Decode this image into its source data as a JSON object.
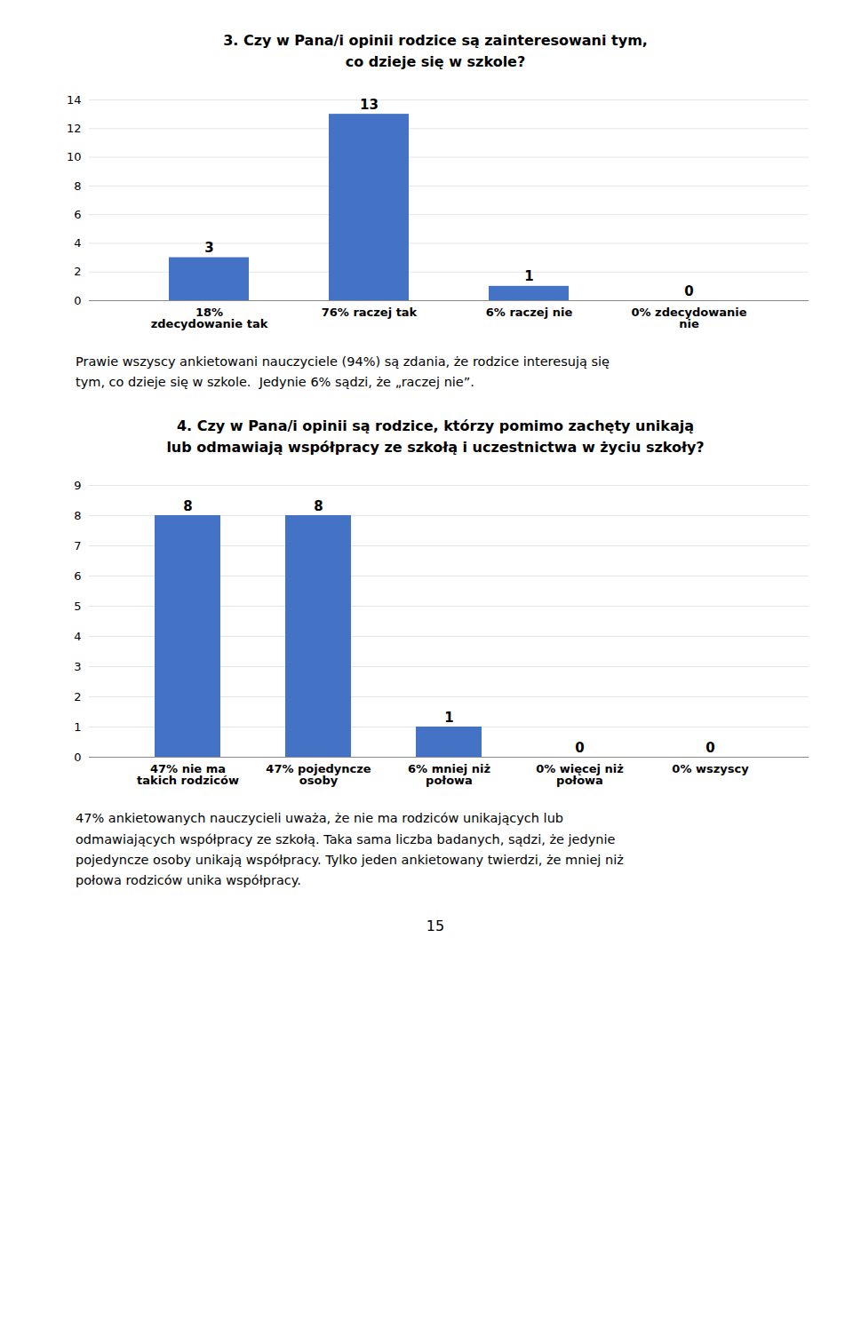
{
  "chart_data": [
    {
      "type": "bar",
      "title": "3.  Czy w Pana/i opinii rodzice są zainteresowani tym,\nco dzieje się w szkole?",
      "categories": [
        "18%\nzdecydowanie tak",
        "76% raczej tak",
        "6% raczej nie",
        "0% zdecydowanie\nnie"
      ],
      "values": [
        3,
        13,
        1,
        0
      ],
      "color": "#4472C4",
      "ylim": [
        0,
        14
      ],
      "yticks": [
        0,
        2,
        4,
        6,
        8,
        10,
        12,
        14
      ],
      "grid": true,
      "data_labels": true,
      "annotations": [
        "Prawie wszyscy ankietowani nauczyciele (94%) są zdania, że rodzice interesują się",
        "tym, co dzieje się w szkole.  Jedynie 6% sądzi, że „raczej nie”."
      ]
    },
    {
      "type": "bar",
      "title": "4.  Czy w Pana/i opinii są rodzice, którzy pomimo zachęty unikają\nlub odmawiają współpracy ze szkołą i uczestnictwa w życiu szkoły?",
      "categories": [
        "47% nie ma\ntakich rodziców",
        "47% pojedyncze\nosoby",
        "6% mniej niż\npołowa",
        "0% więcej niż\npołowa",
        "0% wszyscy"
      ],
      "values": [
        8,
        8,
        1,
        0,
        0
      ],
      "color": "#4472C4",
      "ylim": [
        0,
        9
      ],
      "yticks": [
        0,
        1,
        2,
        3,
        4,
        5,
        6,
        7,
        8,
        9
      ],
      "grid": true,
      "data_labels": true,
      "annotations": [
        "47% ankietowanych nauczycieli uważa, że nie ma rodziców unikających lub",
        "odmawiających współpracy ze szkołą. Taka sama liczba badanych, sądzi, że jedynie",
        "pojedyncze osoby unikają współpracy. Tylko jeden ankietowany twierdzi, że mniej niż",
        "połowa rodziców unika współpracy."
      ]
    }
  ],
  "page_number": "15"
}
